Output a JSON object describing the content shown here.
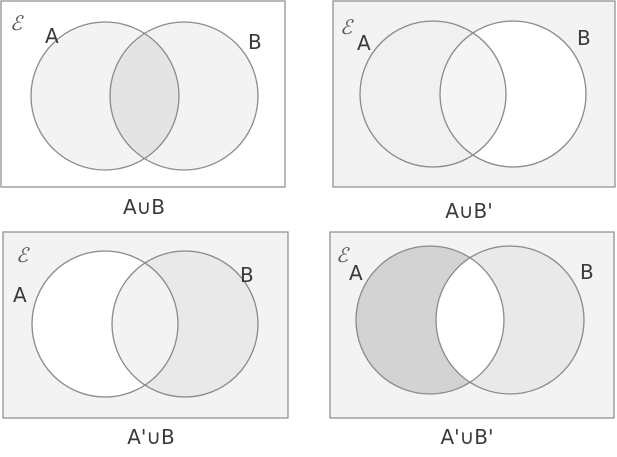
{
  "colors": {
    "page_background": "#ffffff",
    "universe_light": "#f3f3f3",
    "region_light": "#ececec",
    "region_mid": "#e4e4e4",
    "region_dark": "#d3d3d3",
    "outline": "#8a8a8a",
    "text": "#3a3a3a"
  },
  "universe_symbol": "ℰ",
  "panels": [
    {
      "caption": "A∪B",
      "label_a": "A",
      "label_b": "B",
      "fills": {
        "universe": "#ffffff",
        "a_only": "#f3f3f3",
        "b_only": "#f3f3f3",
        "intersection": "#e4e4e4"
      }
    },
    {
      "caption": "A∪B'",
      "label_a": "A",
      "label_b": "B",
      "fills": {
        "universe": "#f3f3f3",
        "a_only": "#f0f0f0",
        "b_only": "#ffffff",
        "intersection": "#f5f5f5"
      }
    },
    {
      "caption": "A'∪B",
      "label_a": "A",
      "label_b": "B",
      "fills": {
        "universe": "#f3f3f3",
        "a_only": "#ffffff",
        "b_only": "#e9e9e9",
        "intersection": "#f3f3f3"
      }
    },
    {
      "caption": "A'∪B'",
      "label_a": "A",
      "label_b": "B",
      "fills": {
        "universe": "#f3f3f3",
        "a_only": "#d3d3d3",
        "b_only": "#e9e9e9",
        "intersection": "#ffffff"
      }
    }
  ]
}
